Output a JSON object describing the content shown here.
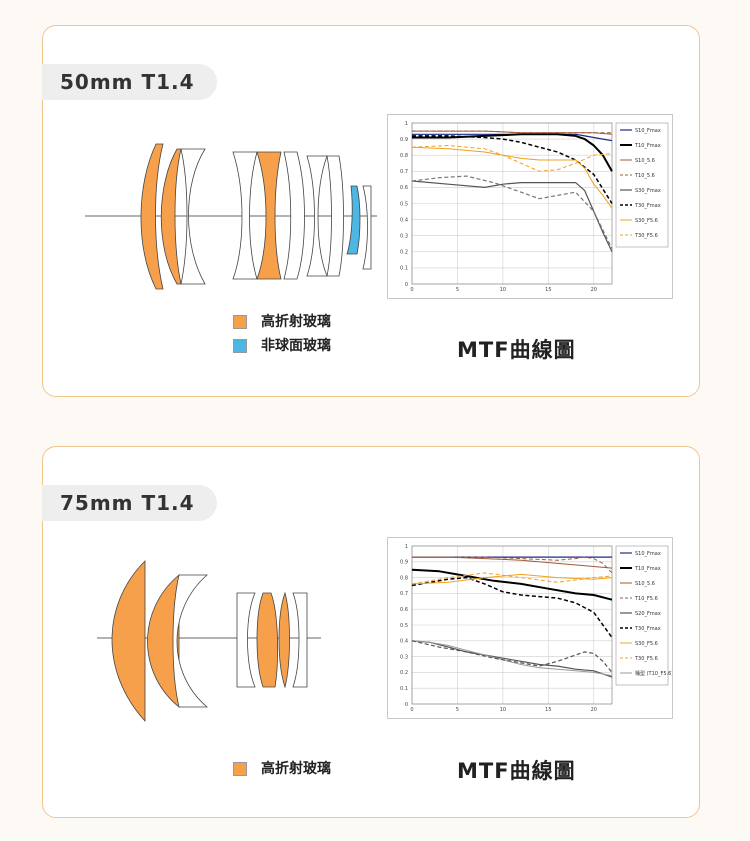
{
  "sections": [
    {
      "title": "50mm T1.4",
      "legend": [
        {
          "label": "高折射玻璃",
          "color": "#f7a04b"
        },
        {
          "label": "非球面玻璃",
          "color": "#4db6e2"
        }
      ],
      "mtf_title": "MTF曲線圖"
    },
    {
      "title": "75mm T1.4",
      "legend": [
        {
          "label": "高折射玻璃",
          "color": "#f7a04b"
        }
      ],
      "mtf_title": "MTF曲線圖"
    }
  ],
  "chart_data": [
    {
      "type": "line",
      "xlim": [
        0,
        22
      ],
      "ylim": [
        0,
        1
      ],
      "x_ticks": [
        "0",
        "5",
        "10",
        "15",
        "20"
      ],
      "y_ticks": [
        "0",
        "0.1",
        "0.2",
        "0.3",
        "0.4",
        "0.5",
        "0.6",
        "0.7",
        "0.8",
        "0.9",
        "1"
      ],
      "grid": true,
      "legend_position": "right",
      "series": [
        {
          "name": "S10_Fmax",
          "color": "#1a2a8a",
          "dash": false,
          "width": 1.2,
          "x": [
            0,
            4,
            8,
            12,
            16,
            18,
            19,
            20,
            21,
            22
          ],
          "y": [
            0.93,
            0.93,
            0.93,
            0.93,
            0.93,
            0.93,
            0.92,
            0.91,
            0.9,
            0.89
          ]
        },
        {
          "name": "T10_Fmax",
          "color": "#000000",
          "dash": false,
          "width": 2,
          "x": [
            0,
            4,
            8,
            12,
            16,
            18,
            19,
            20,
            21,
            22
          ],
          "y": [
            0.91,
            0.91,
            0.92,
            0.93,
            0.93,
            0.92,
            0.9,
            0.86,
            0.8,
            0.7
          ]
        },
        {
          "name": "S10_5.6",
          "color": "#9e5b3a",
          "dash": false,
          "width": 1,
          "x": [
            0,
            4,
            8,
            12,
            16,
            18,
            20,
            22
          ],
          "y": [
            0.95,
            0.95,
            0.95,
            0.94,
            0.94,
            0.94,
            0.94,
            0.93
          ]
        },
        {
          "name": "T10_5.6",
          "color": "#9e5b3a",
          "dash": true,
          "width": 1,
          "x": [
            0,
            4,
            8,
            12,
            16,
            18,
            20,
            22
          ],
          "y": [
            0.95,
            0.95,
            0.95,
            0.94,
            0.94,
            0.94,
            0.94,
            0.94
          ]
        },
        {
          "name": "S30_Fmax",
          "color": "#555555",
          "dash": false,
          "width": 1.2,
          "x": [
            0,
            4,
            8,
            10,
            12,
            14,
            16,
            18,
            19,
            20,
            21,
            22
          ],
          "y": [
            0.64,
            0.62,
            0.6,
            0.62,
            0.63,
            0.63,
            0.63,
            0.63,
            0.58,
            0.45,
            0.32,
            0.2
          ]
        },
        {
          "name": "T30_Fmax",
          "color": "#000000",
          "dash": true,
          "width": 1.5,
          "x": [
            0,
            4,
            8,
            10,
            12,
            14,
            16,
            18,
            20,
            22
          ],
          "y": [
            0.92,
            0.92,
            0.91,
            0.9,
            0.88,
            0.85,
            0.82,
            0.77,
            0.68,
            0.5
          ]
        },
        {
          "name": "S30_F5.6",
          "color": "#f0a020",
          "dash": false,
          "width": 1,
          "x": [
            0,
            4,
            8,
            10,
            12,
            14,
            16,
            18,
            19,
            20,
            21,
            22
          ],
          "y": [
            0.85,
            0.84,
            0.82,
            0.8,
            0.78,
            0.77,
            0.77,
            0.77,
            0.72,
            0.62,
            0.55,
            0.47
          ]
        },
        {
          "name": "T30_F5.6",
          "color": "#f0a020",
          "dash": true,
          "width": 1,
          "x": [
            0,
            4,
            8,
            10,
            12,
            14,
            16,
            18,
            20,
            22
          ],
          "y": [
            0.85,
            0.86,
            0.84,
            0.8,
            0.75,
            0.7,
            0.71,
            0.75,
            0.8,
            0.81
          ]
        },
        {
          "name": "",
          "color": "#777777",
          "dash": true,
          "width": 1.2,
          "x": [
            0,
            3,
            6,
            9,
            12,
            14,
            16,
            18,
            20,
            22
          ],
          "y": [
            0.64,
            0.66,
            0.67,
            0.63,
            0.57,
            0.53,
            0.55,
            0.57,
            0.45,
            0.22
          ]
        }
      ]
    },
    {
      "type": "line",
      "xlim": [
        0,
        22
      ],
      "ylim": [
        0,
        1
      ],
      "x_ticks": [
        "0",
        "5",
        "10",
        "15",
        "20"
      ],
      "y_ticks": [
        "0",
        "0.1",
        "0.2",
        "0.3",
        "0.4",
        "0.5",
        "0.6",
        "0.7",
        "0.8",
        "0.9",
        "1"
      ],
      "grid": true,
      "legend_position": "right",
      "series": [
        {
          "name": "S10_Fmax",
          "color": "#1a2a8a",
          "dash": false,
          "width": 1.2,
          "x": [
            0,
            4,
            8,
            12,
            16,
            20,
            22
          ],
          "y": [
            0.93,
            0.93,
            0.93,
            0.93,
            0.93,
            0.93,
            0.93
          ]
        },
        {
          "name": "T10_Fmax",
          "color": "#000000",
          "dash": false,
          "width": 2,
          "x": [
            0,
            3,
            6,
            9,
            12,
            15,
            18,
            20,
            22
          ],
          "y": [
            0.85,
            0.84,
            0.81,
            0.78,
            0.76,
            0.73,
            0.7,
            0.69,
            0.66
          ]
        },
        {
          "name": "S10_5.6",
          "color": "#9e5b3a",
          "dash": false,
          "width": 1,
          "x": [
            0,
            4,
            8,
            12,
            16,
            20,
            22
          ],
          "y": [
            0.93,
            0.93,
            0.92,
            0.91,
            0.89,
            0.87,
            0.86
          ]
        },
        {
          "name": "T10_F5.6",
          "color": "#9e5b3a",
          "dash": true,
          "width": 1,
          "x": [
            0,
            4,
            8,
            12,
            16,
            18,
            19,
            20,
            21,
            22
          ],
          "y": [
            0.93,
            0.93,
            0.93,
            0.92,
            0.91,
            0.92,
            0.93,
            0.92,
            0.89,
            0.83
          ]
        },
        {
          "name": "S20_Fmax",
          "color": "#555555",
          "dash": false,
          "width": 1.2,
          "x": [
            0,
            2,
            4,
            6,
            8,
            10,
            12,
            14,
            16,
            18,
            20,
            22
          ],
          "y": [
            0.4,
            0.39,
            0.36,
            0.33,
            0.31,
            0.29,
            0.27,
            0.25,
            0.24,
            0.22,
            0.21,
            0.17
          ]
        },
        {
          "name": "T30_Fmax",
          "color": "#000000",
          "dash": true,
          "width": 1.5,
          "x": [
            0,
            2,
            4,
            6,
            8,
            10,
            12,
            14,
            16,
            18,
            20,
            22
          ],
          "y": [
            0.75,
            0.77,
            0.79,
            0.8,
            0.76,
            0.71,
            0.69,
            0.68,
            0.67,
            0.64,
            0.58,
            0.42
          ]
        },
        {
          "name": "S30_F5.6",
          "color": "#f0a020",
          "dash": false,
          "width": 1,
          "x": [
            0,
            4,
            8,
            12,
            16,
            20,
            22
          ],
          "y": [
            0.76,
            0.77,
            0.8,
            0.82,
            0.8,
            0.79,
            0.8
          ]
        },
        {
          "name": "T30_F5.6",
          "color": "#f0a020",
          "dash": true,
          "width": 1,
          "x": [
            0,
            4,
            8,
            12,
            16,
            20,
            22
          ],
          "y": [
            0.76,
            0.8,
            0.83,
            0.8,
            0.77,
            0.8,
            0.81
          ]
        },
        {
          "name": "桶型 (T10_F5.6)",
          "color": "#999999",
          "dash": false,
          "width": 1,
          "x": [
            0,
            2,
            4,
            6,
            8,
            10,
            12,
            14,
            16,
            18,
            20,
            22
          ],
          "y": [
            0.4,
            0.39,
            0.37,
            0.34,
            0.31,
            0.28,
            0.25,
            0.23,
            0.22,
            0.21,
            0.2,
            0.18
          ]
        },
        {
          "name": "",
          "color": "#555555",
          "dash": true,
          "width": 1.2,
          "x": [
            0,
            3,
            6,
            9,
            12,
            14,
            16,
            18,
            19,
            20,
            21,
            22
          ],
          "y": [
            0.4,
            0.36,
            0.33,
            0.29,
            0.26,
            0.24,
            0.27,
            0.31,
            0.33,
            0.32,
            0.27,
            0.2
          ]
        }
      ]
    }
  ]
}
